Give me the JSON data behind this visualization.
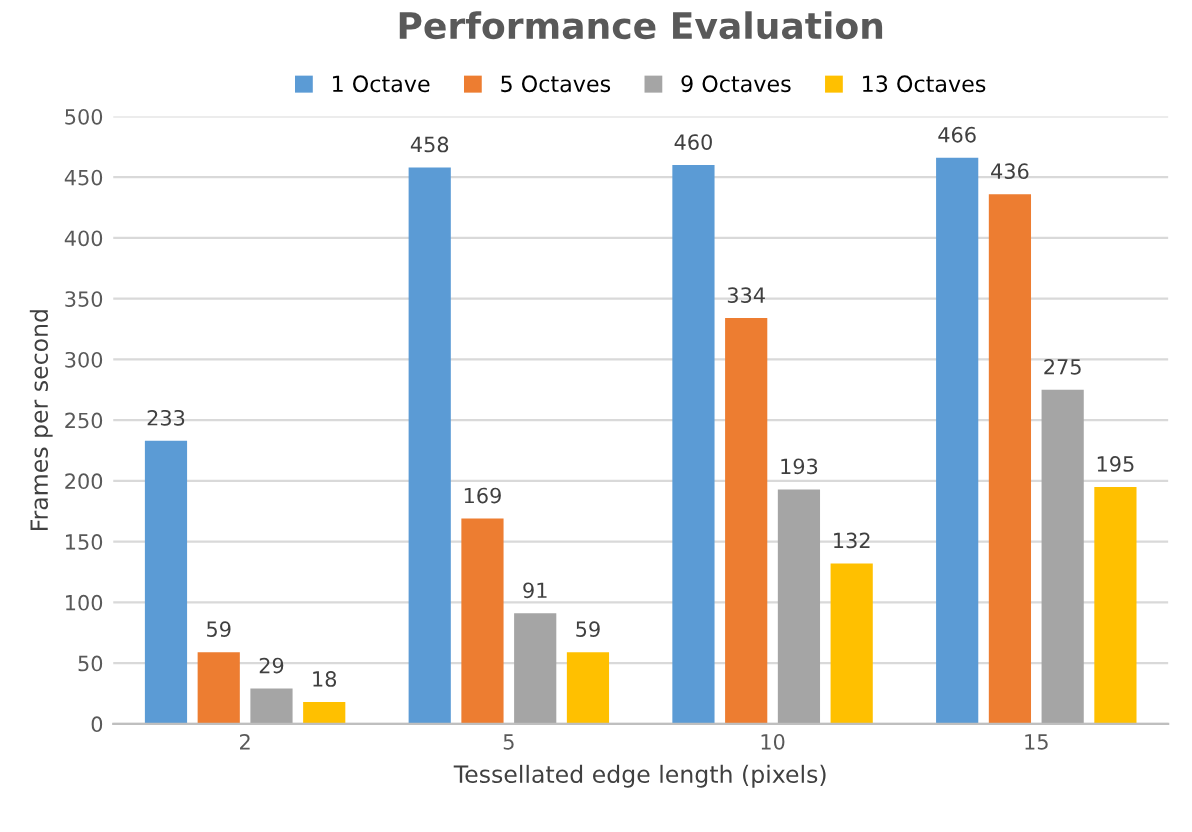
{
  "chart_data": {
    "type": "bar",
    "title": "Performance Evaluation",
    "xlabel": "Tessellated edge length (pixels)",
    "ylabel": "Frames per second",
    "categories": [
      "2",
      "5",
      "10",
      "15"
    ],
    "series": [
      {
        "name": "1 Octave",
        "color": "#5b9bd5",
        "values": [
          233,
          458,
          460,
          466
        ]
      },
      {
        "name": "5 Octaves",
        "color": "#ed7d31",
        "values": [
          59,
          169,
          334,
          436
        ]
      },
      {
        "name": "9 Octaves",
        "color": "#a5a5a5",
        "values": [
          29,
          91,
          193,
          275
        ]
      },
      {
        "name": "13 Octaves",
        "color": "#ffc000",
        "values": [
          18,
          59,
          132,
          195
        ]
      }
    ],
    "ylim": [
      0,
      500
    ],
    "yticks": [
      0,
      50,
      100,
      150,
      200,
      250,
      300,
      350,
      400,
      450,
      500
    ],
    "grid": "y",
    "legend": "top",
    "data_labels": true
  }
}
